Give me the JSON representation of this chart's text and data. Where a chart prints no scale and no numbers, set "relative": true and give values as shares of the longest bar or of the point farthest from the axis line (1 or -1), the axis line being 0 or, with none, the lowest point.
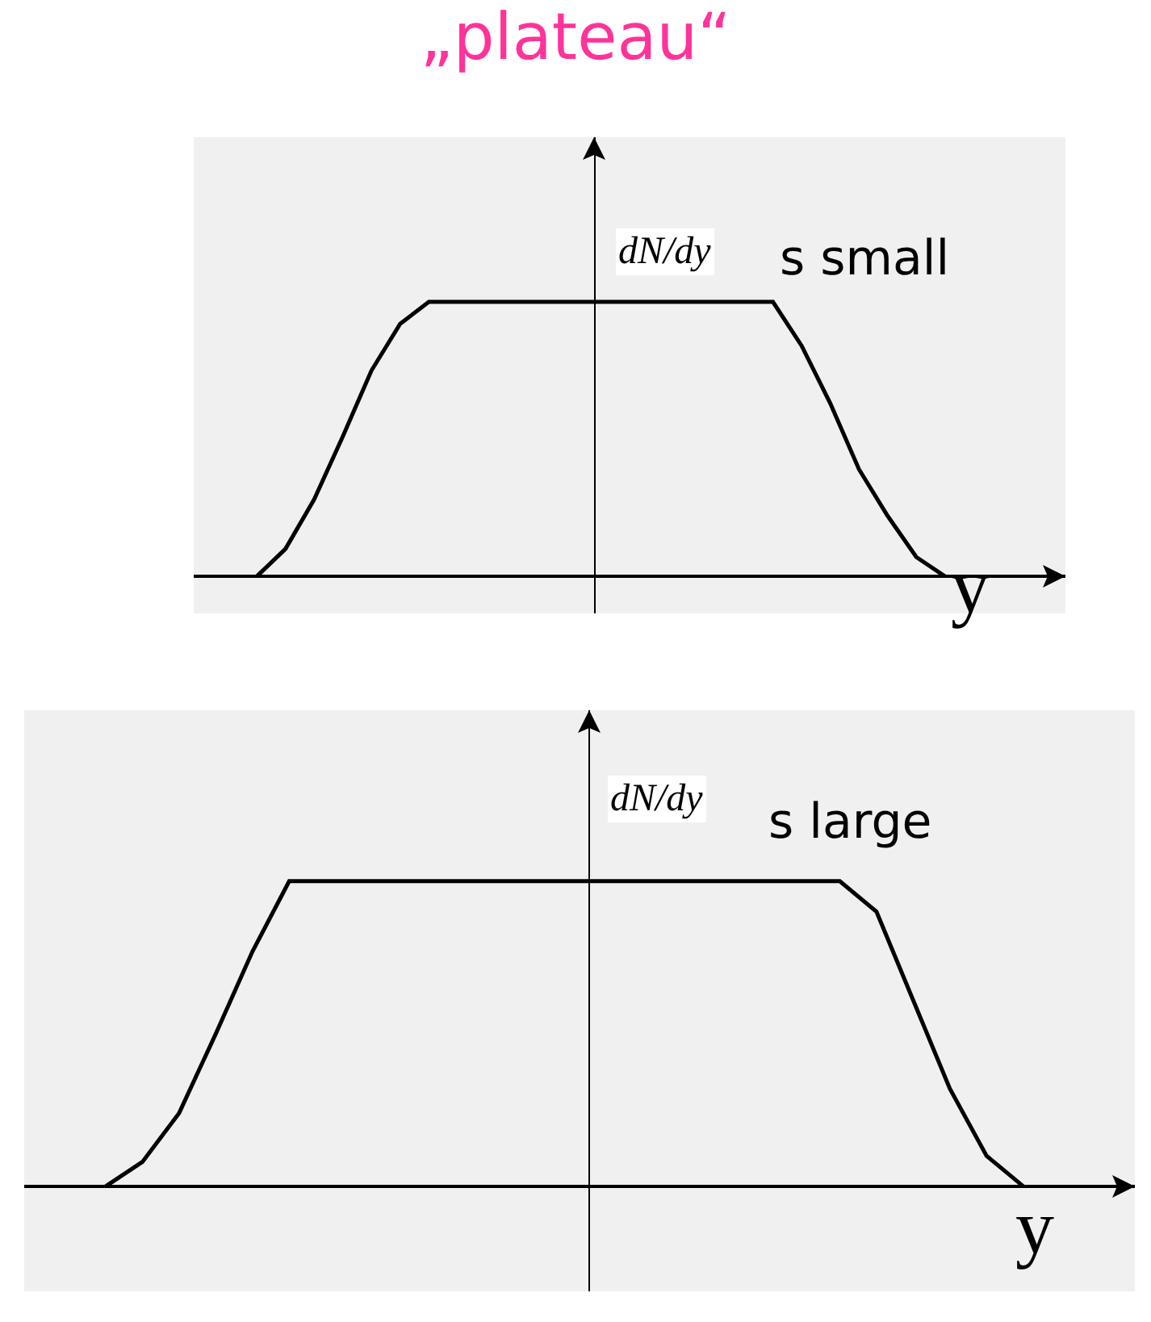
{
  "chart_data": [
    {
      "type": "line",
      "title": "„plateau“",
      "xlabel": "y",
      "ylabel": "dN/dy",
      "relative": true,
      "annotations": [
        "s small"
      ],
      "color": "#000000",
      "categories": [
        null,
        null,
        null,
        null,
        null,
        null,
        null,
        null,
        null,
        null,
        null,
        null,
        null,
        null,
        null,
        null,
        null,
        null,
        null,
        null,
        null,
        null,
        null,
        null,
        null,
        null,
        null,
        null,
        null,
        null,
        null
      ],
      "values": [
        null,
        null,
        0,
        0.1,
        0.28,
        0.51,
        0.75,
        0.92,
        1,
        1,
        1,
        1,
        1,
        1,
        1,
        1,
        1,
        1,
        1,
        1,
        1,
        0.84,
        0.63,
        0.39,
        0.22,
        0.07,
        0,
        null,
        null,
        null,
        null
      ]
    },
    {
      "type": "line",
      "xlabel": "y",
      "ylabel": "dN/dy",
      "relative": true,
      "annotations": [
        "s large"
      ],
      "color": "#000000",
      "categories": [
        null,
        null,
        null,
        null,
        null,
        null,
        null,
        null,
        null,
        null,
        null,
        null,
        null,
        null,
        null,
        null,
        null,
        null,
        null,
        null,
        null,
        null,
        null,
        null,
        null,
        null,
        null,
        null,
        null,
        null,
        null
      ],
      "values": [
        null,
        null,
        0,
        0.08,
        0.24,
        0.5,
        0.77,
        1,
        1,
        1,
        1,
        1,
        1,
        1,
        1,
        1,
        1,
        1,
        1,
        1,
        1,
        1,
        1,
        0.9,
        0.61,
        0.32,
        0.1,
        0,
        null,
        null,
        null
      ]
    }
  ]
}
